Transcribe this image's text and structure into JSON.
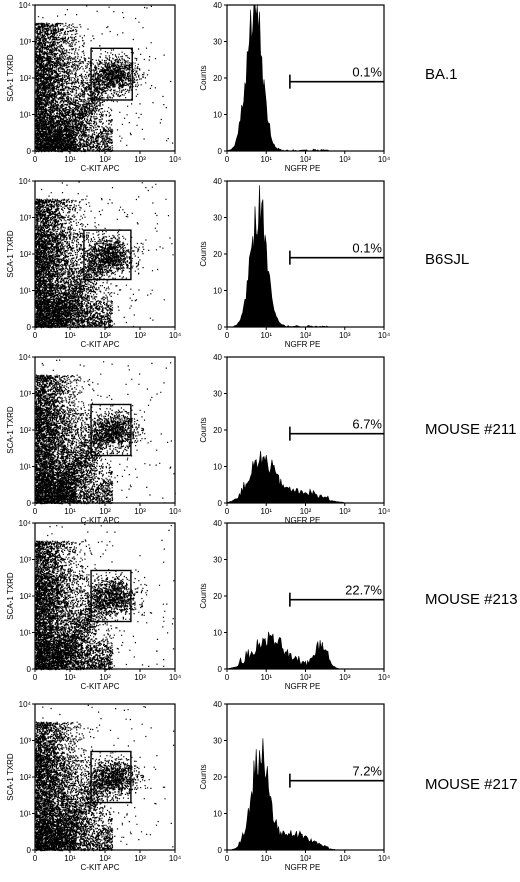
{
  "chart_data": {
    "type": "figure-panels",
    "common": {
      "scatter": {
        "xlabel": "C-KIT APC",
        "ylabel": "SCA-1 TXRD",
        "x_scale": "log",
        "y_scale": "log",
        "xlim": [
          1,
          10000
        ],
        "ylim": [
          1,
          10000
        ],
        "x_tick_labels": [
          "0",
          "10¹",
          "10²",
          "10³",
          "10⁴"
        ],
        "y_tick_labels": [
          "0",
          "10¹",
          "10²",
          "10³",
          "10⁴"
        ]
      },
      "histogram": {
        "xlabel": "NGFR PE",
        "ylabel": "Counts",
        "x_scale": "log",
        "xlim": [
          1,
          10000
        ],
        "ylim": [
          0,
          40
        ],
        "y_ticks": [
          0,
          10,
          20,
          30,
          40
        ],
        "x_tick_labels": [
          "0",
          "10¹",
          "10²",
          "10³",
          "10⁴"
        ],
        "gate_start": 40,
        "gate_end": 10000
      }
    },
    "rows": [
      {
        "sample": "BA.1",
        "gate_box": {
          "x": [
            40,
            600
          ],
          "y": [
            25,
            650
          ]
        },
        "percent_label": "0.1%",
        "gate_level": 19,
        "histogram": {
          "peaks": [
            {
              "center": 5,
              "width": 0.2,
              "height": 38
            }
          ],
          "tail": 0.4
        }
      },
      {
        "sample": "B6SJL",
        "gate_box": {
          "x": [
            25,
            550
          ],
          "y": [
            20,
            450
          ]
        },
        "percent_label": "0.1%",
        "gate_level": 19,
        "histogram": {
          "peaks": [
            {
              "center": 6.5,
              "width": 0.2,
              "height": 32
            }
          ],
          "tail": 0.4
        }
      },
      {
        "sample": "MOUSE #211",
        "gate_box": {
          "x": [
            40,
            550
          ],
          "y": [
            20,
            500
          ]
        },
        "percent_label": "6.7%",
        "gate_level": 19,
        "histogram": {
          "peaks": [
            {
              "center": 8,
              "width": 0.32,
              "height": 11
            },
            {
              "center": 80,
              "width": 0.45,
              "height": 2.5
            }
          ],
          "tail": 1.2
        }
      },
      {
        "sample": "MOUSE #213",
        "gate_box": {
          "x": [
            40,
            550
          ],
          "y": [
            20,
            500
          ]
        },
        "percent_label": "22.7%",
        "gate_level": 19,
        "histogram": {
          "peaks": [
            {
              "center": 12,
              "width": 0.38,
              "height": 7
            },
            {
              "center": 250,
              "width": 0.16,
              "height": 6
            }
          ],
          "tail": 2
        }
      },
      {
        "sample": "MOUSE #217",
        "gate_box": {
          "x": [
            40,
            550
          ],
          "y": [
            20,
            500
          ]
        },
        "percent_label": "7.2%",
        "gate_level": 19,
        "histogram": {
          "peaks": [
            {
              "center": 7,
              "width": 0.22,
              "height": 25
            },
            {
              "center": 50,
              "width": 0.4,
              "height": 4
            }
          ],
          "tail": 1
        }
      }
    ]
  }
}
